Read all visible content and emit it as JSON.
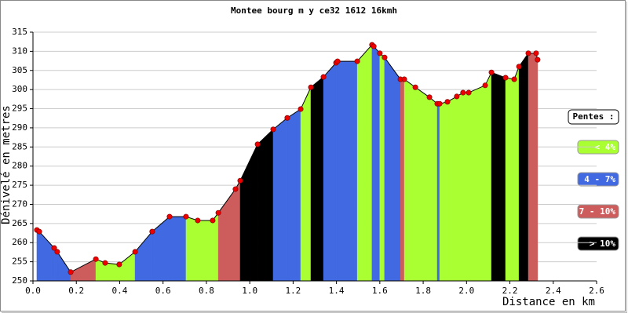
{
  "chart_data": {
    "type": "profile",
    "title": "Montee bourg m y ce32 1612 16kmh",
    "y_label": "Dénivelé en metres",
    "x_label": "Distance en km",
    "legend_title": "Pentes :",
    "legend": [
      {
        "name": "< 4%",
        "color": "#aaff33"
      },
      {
        "name": "4 - 7%",
        "color": "#4169e1"
      },
      {
        "name": "7 - 10%",
        "color": "#cd5c5c"
      },
      {
        "name": "> 10%",
        "color": "#000000"
      }
    ],
    "x": [
      0.018,
      0.029,
      0.098,
      0.112,
      0.174,
      0.29,
      0.333,
      0.398,
      0.471,
      0.55,
      0.63,
      0.706,
      0.76,
      0.829,
      0.855,
      0.934,
      0.956,
      1.036,
      1.108,
      1.173,
      1.235,
      1.282,
      1.34,
      1.398,
      1.405,
      1.496,
      1.564,
      1.572,
      1.6,
      1.622,
      1.695,
      1.713,
      1.764,
      1.829,
      1.865,
      1.876,
      1.912,
      1.955,
      1.984,
      2.01,
      2.086,
      2.115,
      2.18,
      2.22,
      2.242,
      2.285,
      2.321,
      2.328
    ],
    "values": [
      263.3,
      262.9,
      258.6,
      257.6,
      252.3,
      255.7,
      254.7,
      254.3,
      257.6,
      262.9,
      266.8,
      266.8,
      265.8,
      265.8,
      267.8,
      274.0,
      276.2,
      285.7,
      289.6,
      292.6,
      294.9,
      300.6,
      303.3,
      307.0,
      307.4,
      307.4,
      311.7,
      311.3,
      309.5,
      308.4,
      302.7,
      302.7,
      300.6,
      298.0,
      296.3,
      296.3,
      296.8,
      298.2,
      299.2,
      299.2,
      301.1,
      304.5,
      303.1,
      302.7,
      306.0,
      309.5,
      309.5,
      307.8
    ],
    "segment_colors": [
      "#4169e1",
      "#4169e1",
      "#4169e1",
      "#4169e1",
      "#cd5c5c",
      "#aaff33",
      "#aaff33",
      "#aaff33",
      "#4169e1",
      "#4169e1",
      "#4169e1",
      "#aaff33",
      "#aaff33",
      "#aaff33",
      "#cd5c5c",
      "#cd5c5c",
      "#000000",
      "#000000",
      "#4169e1",
      "#4169e1",
      "#aaff33",
      "#000000",
      "#4169e1",
      "#4169e1",
      "#4169e1",
      "#aaff33",
      "#4169e1",
      "#4169e1",
      "#aaff33",
      "#4169e1",
      "#cd5c5c",
      "#aaff33",
      "#aaff33",
      "#aaff33",
      "#4169e1",
      "#aaff33",
      "#aaff33",
      "#aaff33",
      "#aaff33",
      "#aaff33",
      "#aaff33",
      "#000000",
      "#aaff33",
      "#aaff33",
      "#000000",
      "#cd5c5c",
      "#cd5c5c"
    ],
    "point_color": "#ee0000",
    "xlim": [
      0,
      2.6
    ],
    "xticks": [
      {
        "value": 0,
        "label": "0.0"
      },
      0.2,
      0.4,
      0.6,
      0.8,
      {
        "value": 1,
        "label": "1.0"
      },
      1.2,
      1.4,
      1.6,
      1.8,
      {
        "value": 2,
        "label": "2.0"
      },
      2.2,
      2.4,
      2.6
    ],
    "ylim": [
      250,
      315
    ],
    "yticks": [
      250,
      255,
      260,
      265,
      270,
      275,
      280,
      285,
      290,
      295,
      300,
      305,
      310,
      315
    ],
    "grid": true
  }
}
